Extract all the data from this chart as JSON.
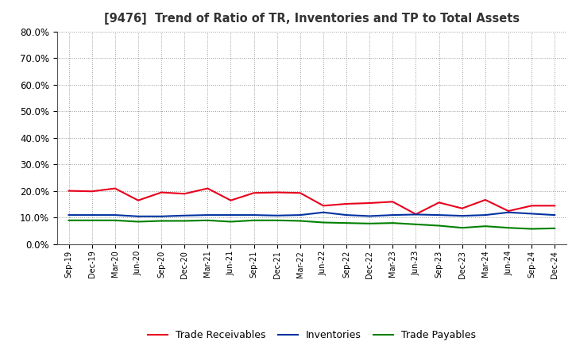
{
  "title": "[9476]  Trend of Ratio of TR, Inventories and TP to Total Assets",
  "x_labels": [
    "Sep-19",
    "Dec-19",
    "Mar-20",
    "Jun-20",
    "Sep-20",
    "Dec-20",
    "Mar-21",
    "Jun-21",
    "Sep-21",
    "Dec-21",
    "Mar-22",
    "Jun-22",
    "Sep-22",
    "Dec-22",
    "Mar-23",
    "Jun-23",
    "Sep-23",
    "Dec-23",
    "Mar-24",
    "Jun-24",
    "Sep-24",
    "Dec-24"
  ],
  "trade_receivables": [
    0.201,
    0.199,
    0.21,
    0.165,
    0.195,
    0.19,
    0.21,
    0.165,
    0.193,
    0.195,
    0.193,
    0.145,
    0.152,
    0.155,
    0.16,
    0.113,
    0.157,
    0.135,
    0.167,
    0.125,
    0.145,
    0.145
  ],
  "inventories": [
    0.11,
    0.11,
    0.11,
    0.105,
    0.105,
    0.108,
    0.11,
    0.11,
    0.11,
    0.108,
    0.11,
    0.12,
    0.11,
    0.106,
    0.11,
    0.112,
    0.11,
    0.107,
    0.11,
    0.12,
    0.115,
    0.11
  ],
  "trade_payables": [
    0.09,
    0.09,
    0.09,
    0.085,
    0.088,
    0.088,
    0.09,
    0.085,
    0.09,
    0.09,
    0.088,
    0.082,
    0.08,
    0.078,
    0.08,
    0.075,
    0.07,
    0.062,
    0.068,
    0.062,
    0.058,
    0.06
  ],
  "tr_color": "#e8001c",
  "inv_color": "#0032a0",
  "tp_color": "#008000",
  "ylim": [
    0.0,
    0.8
  ],
  "yticks": [
    0.0,
    0.1,
    0.2,
    0.3,
    0.4,
    0.5,
    0.6,
    0.7,
    0.8
  ],
  "background_color": "#ffffff",
  "grid_color": "#aaaaaa",
  "legend_labels": [
    "Trade Receivables",
    "Inventories",
    "Trade Payables"
  ]
}
